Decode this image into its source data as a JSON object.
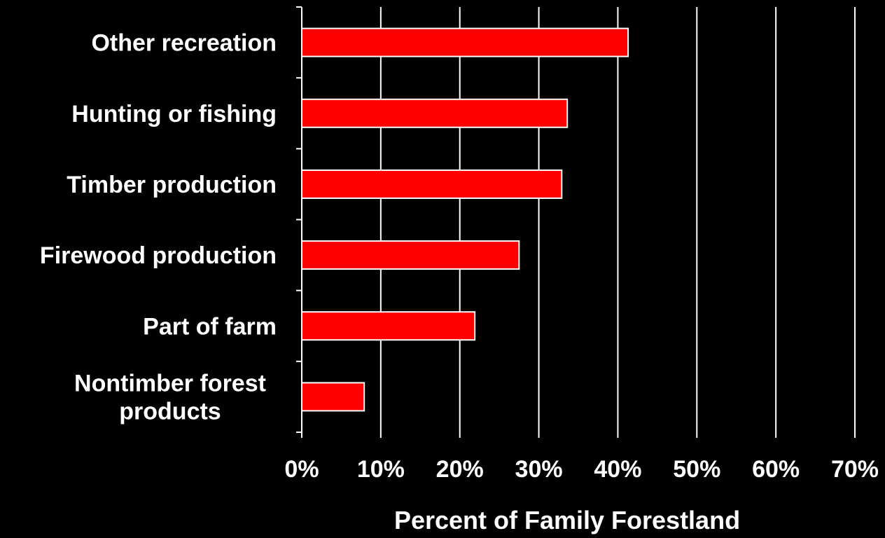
{
  "chart_data": {
    "type": "bar",
    "orientation": "horizontal",
    "categories": [
      "Other recreation",
      "Hunting or fishing",
      "Timber production",
      "Firewood production",
      "Part of farm",
      "Nontimber forest products"
    ],
    "category_label_lines": [
      [
        "Other recreation"
      ],
      [
        "Hunting or fishing"
      ],
      [
        "Timber production"
      ],
      [
        "Firewood production"
      ],
      [
        "Part of farm"
      ],
      [
        "Nontimber forest",
        "products"
      ]
    ],
    "values": [
      41.3,
      33.6,
      32.9,
      27.5,
      21.9,
      7.9
    ],
    "xlabel": "Percent of Family Forestland",
    "ylabel": "",
    "title": "",
    "xlim": [
      0,
      70
    ],
    "xticks": [
      0,
      10,
      20,
      30,
      40,
      50,
      60,
      70
    ],
    "xtick_labels": [
      "0%",
      "10%",
      "20%",
      "30%",
      "40%",
      "50%",
      "60%",
      "70%"
    ],
    "grid": "vertical",
    "legend": "none",
    "colors": {
      "background": "#000000",
      "bar_fill": "#ff0000",
      "bar_stroke": "#ffffff",
      "grid": "#ffffff",
      "text": "#ffffff"
    }
  }
}
